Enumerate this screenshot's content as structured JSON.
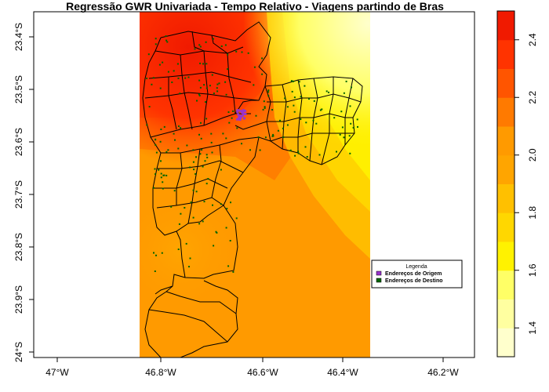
{
  "title": "Regressão GWR Univariada - Tempo Relativo - Viagens partindo de Bras",
  "x_ticks": [
    "47°W",
    "46.8°W",
    "46.6°W",
    "46.4°W",
    "46.2°W"
  ],
  "y_ticks": [
    "23.4°S",
    "23.5°S",
    "23.6°S",
    "23.7°S",
    "23.8°S",
    "23.9°S",
    "24°S"
  ],
  "colorbar": {
    "ticks": [
      "1.4",
      "1.6",
      "1.8",
      "2.0",
      "2.2",
      "2.4"
    ],
    "min": 1.3,
    "max": 2.5,
    "colors": [
      "#FFFFCC",
      "#FFFFA0",
      "#FFFF66",
      "#FFF200",
      "#FFD700",
      "#FFC000",
      "#FFA500",
      "#FF9A00",
      "#FF7A00",
      "#FF5500",
      "#FF3300",
      "#F01A00"
    ]
  },
  "legend": {
    "title": "Legenda",
    "items": [
      {
        "label": "Endereços de Origem",
        "color": "#9933CC"
      },
      {
        "label": "Endereços de Destino",
        "color": "#006400"
      }
    ]
  }
}
